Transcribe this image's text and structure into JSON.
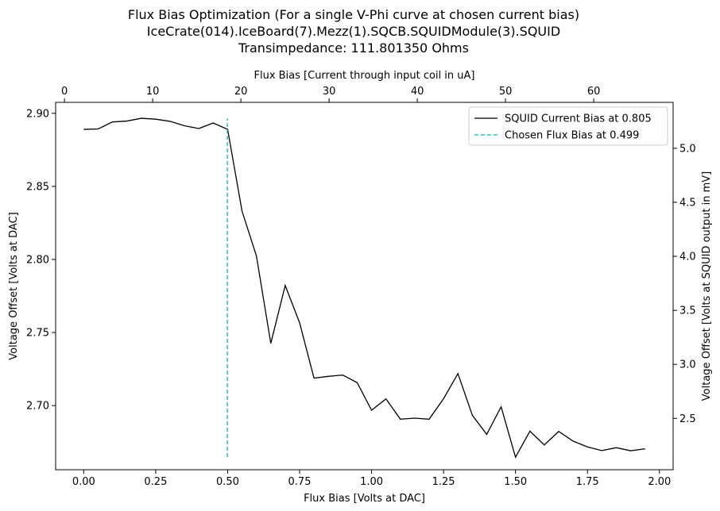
{
  "chart_data": {
    "type": "line",
    "title_lines": [
      "Flux Bias Optimization (For a single V-Phi curve at chosen current bias)",
      "IceCrate(014).IceBoard(7).Mezz(1).SQCB.SQUIDModule(3).SQUID",
      "Transimpedance: 111.801350 Ohms"
    ],
    "xlabel": "Flux Bias [Volts at DAC]",
    "ylabel": "Voltage Offset [Volts at DAC]",
    "x2label": "Flux Bias [Current through input coil in uA]",
    "y2label": "Voltage Offset [Volts at SQUID output in mV]",
    "xlim": [
      -0.0975,
      2.0475
    ],
    "ylim": [
      2.6561,
      2.9075
    ],
    "x2lim": [
      -1.0,
      69.0
    ],
    "y2lim": [
      2.025,
      5.425
    ],
    "xticks": [
      "0.00",
      "0.25",
      "0.50",
      "0.75",
      "1.00",
      "1.25",
      "1.50",
      "1.75",
      "2.00"
    ],
    "yticks": [
      "2.70",
      "2.75",
      "2.80",
      "2.85",
      "2.90"
    ],
    "x2ticks": [
      "0",
      "10",
      "20",
      "30",
      "40",
      "50",
      "60"
    ],
    "y2ticks": [
      "2.5",
      "3.0",
      "3.5",
      "4.0",
      "4.5",
      "5.0"
    ],
    "grid": false,
    "legend_position": "top-right",
    "series": [
      {
        "name": "SQUID Current Bias at 0.805",
        "color": "#000000",
        "style": "solid",
        "x": [
          0.0,
          0.05,
          0.1,
          0.15,
          0.2,
          0.25,
          0.3,
          0.35,
          0.4,
          0.45,
          0.5,
          0.55,
          0.6,
          0.65,
          0.7,
          0.75,
          0.8,
          0.85,
          0.9,
          0.95,
          1.0,
          1.05,
          1.1,
          1.15,
          1.2,
          1.25,
          1.3,
          1.35,
          1.4,
          1.45,
          1.5,
          1.55,
          1.6,
          1.65,
          1.7,
          1.75,
          1.8,
          1.85,
          1.9,
          1.95
        ],
        "y": [
          2.889,
          2.8893,
          2.8941,
          2.8947,
          2.8966,
          2.896,
          2.8945,
          2.8915,
          2.8896,
          2.8934,
          2.889,
          2.8331,
          2.8024,
          2.7426,
          2.7822,
          2.7567,
          2.7188,
          2.72,
          2.7209,
          2.7157,
          2.6968,
          2.7046,
          2.6907,
          2.6914,
          2.6907,
          2.7047,
          2.7219,
          2.6934,
          2.6803,
          2.6992,
          2.6647,
          2.6825,
          2.6731,
          2.6823,
          2.6757,
          2.6717,
          2.6692,
          2.6712,
          2.6691,
          2.6704
        ]
      },
      {
        "name": "Chosen Flux Bias at 0.499",
        "color": "#00bfbf",
        "style": "dashed",
        "x": [
          0.499,
          0.499
        ],
        "y": [
          2.6647,
          2.8966
        ]
      }
    ]
  }
}
